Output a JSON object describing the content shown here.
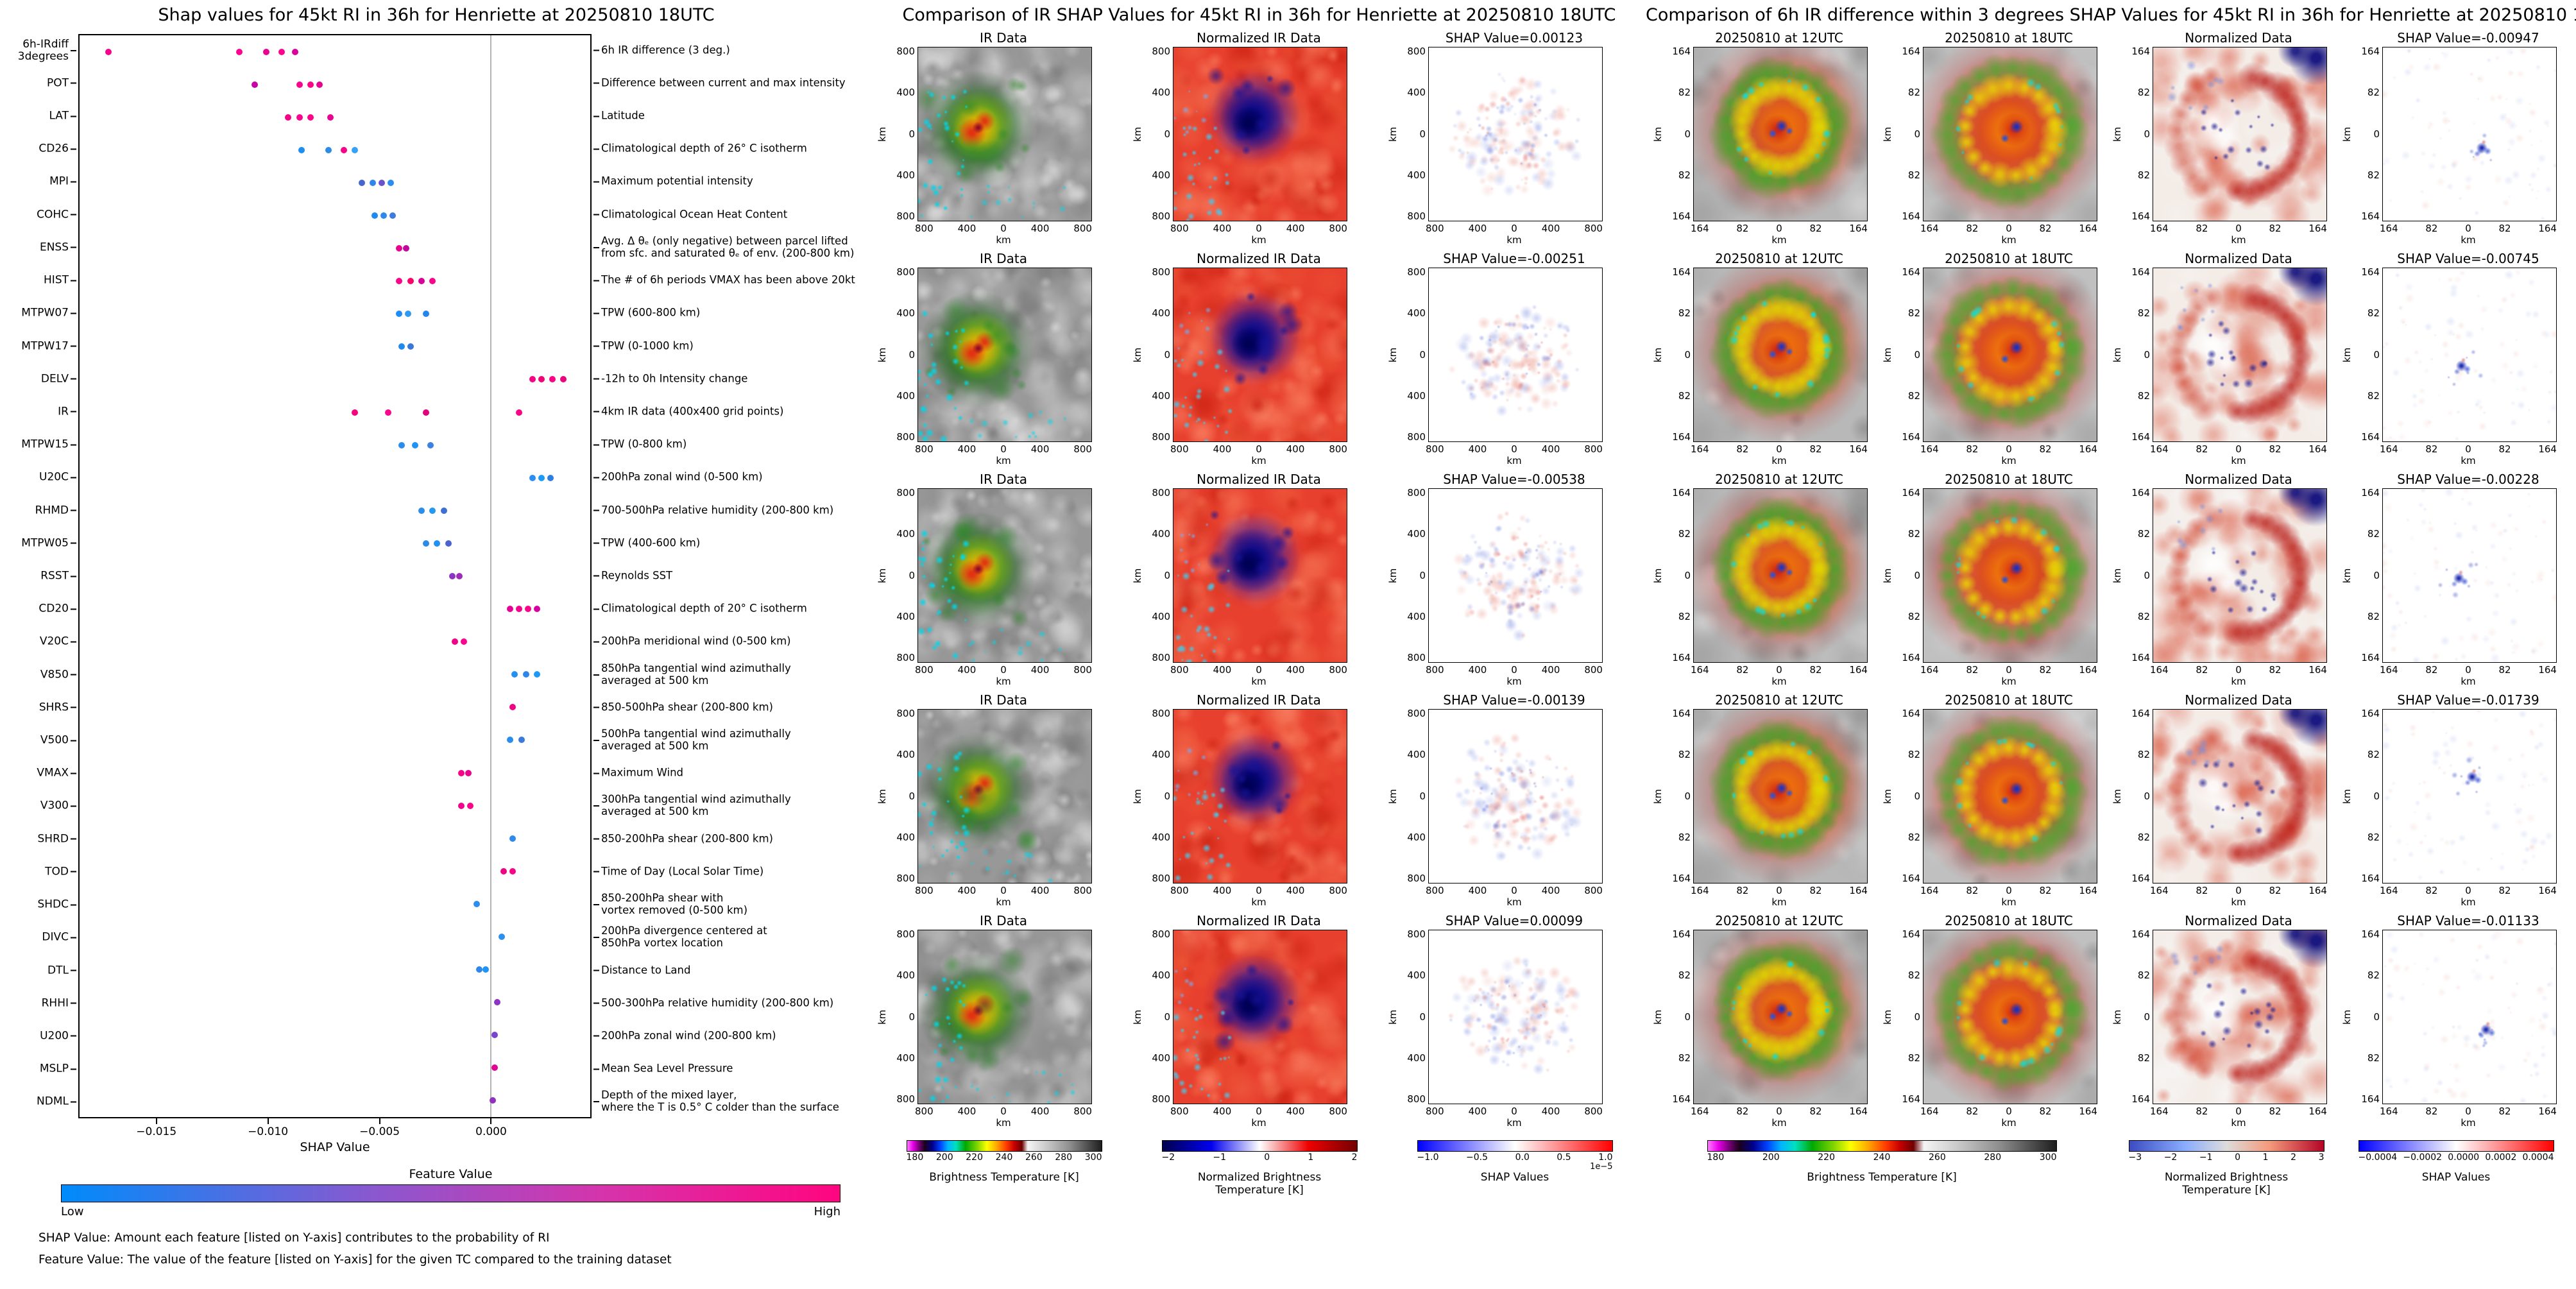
{
  "chart_data": [
    {
      "type": "scatter",
      "title": "Shap values for 45kt RI in 36h for Henriette at 20250810 18UTC",
      "xlabel": "SHAP Value",
      "xlim": [
        -0.0185,
        0.0045
      ],
      "x_ticks": [
        -0.015,
        -0.01,
        -0.005,
        0
      ],
      "legend_position": "none",
      "grid": false,
      "features": [
        {
          "name": "6h-IRdiff\n3degrees",
          "description": "6h IR difference (3 deg.)",
          "points": [
            [
              -0.0172,
              "#f5048b"
            ],
            [
              -0.0113,
              "#fb0590"
            ],
            [
              -0.0101,
              "#e8038f"
            ],
            [
              -0.0094,
              "#fb058a"
            ],
            [
              -0.0088,
              "#d6029a"
            ]
          ]
        },
        {
          "name": "POT",
          "description": "Difference between current and max intensity",
          "points": [
            [
              -0.0106,
              "#c504a8"
            ],
            [
              -0.0086,
              "#f70590"
            ],
            [
              -0.0081,
              "#fd0487"
            ],
            [
              -0.0077,
              "#e60392"
            ]
          ]
        },
        {
          "name": "LAT",
          "description": "Latitude",
          "points": [
            [
              -0.0091,
              "#f20484"
            ],
            [
              -0.0086,
              "#fa0490"
            ],
            [
              -0.0081,
              "#fc058a"
            ],
            [
              -0.0072,
              "#e80493"
            ]
          ]
        },
        {
          "name": "CD26",
          "description": "Climatological depth of 26° C isotherm",
          "points": [
            [
              -0.0085,
              "#1c8ef0"
            ],
            [
              -0.0073,
              "#2b8ce6"
            ],
            [
              -0.0066,
              "#f50589"
            ],
            [
              -0.0061,
              "#35a2f5"
            ]
          ]
        },
        {
          "name": "MPI",
          "description": "Maximum potential intensity",
          "points": [
            [
              -0.0058,
              "#4766cf"
            ],
            [
              -0.0053,
              "#2f86ea"
            ],
            [
              -0.0049,
              "#6a52c9"
            ],
            [
              -0.0045,
              "#2a8df0"
            ]
          ]
        },
        {
          "name": "COHC",
          "description": "Climatological Ocean Heat Content",
          "points": [
            [
              -0.0052,
              "#1f8bf2"
            ],
            [
              -0.0048,
              "#2d89ec"
            ],
            [
              -0.0044,
              "#3f7ade"
            ]
          ]
        },
        {
          "name": "ENSS",
          "description": "Avg. Δ θₑ (only negative) between parcel lifted\nfrom sfc. and saturated θₑ of env. (200-800 km)",
          "points": [
            [
              -0.0041,
              "#e8038f"
            ],
            [
              -0.0038,
              "#c2079e"
            ]
          ]
        },
        {
          "name": "HIST",
          "description": "The # of 6h periods VMAX has been above 20kt",
          "points": [
            [
              -0.0041,
              "#f7058b"
            ],
            [
              -0.0036,
              "#fb0468"
            ],
            [
              -0.0031,
              "#d6029a"
            ],
            [
              -0.0026,
              "#f9048e"
            ]
          ]
        },
        {
          "name": "MTPW07",
          "description": "TPW (600-800 km)",
          "points": [
            [
              -0.0041,
              "#1d8df3"
            ],
            [
              -0.0037,
              "#2e9bf0"
            ],
            [
              -0.0029,
              "#2486ea"
            ]
          ]
        },
        {
          "name": "MTPW17",
          "description": "TPW (0-1000 km)",
          "points": [
            [
              -0.004,
              "#2089ef"
            ],
            [
              -0.0036,
              "#3a77dd"
            ]
          ]
        },
        {
          "name": "DELV",
          "description": "-12h to 0h Intensity change",
          "points": [
            [
              0.0019,
              "#f50483"
            ],
            [
              0.0023,
              "#ef0576"
            ],
            [
              0.0028,
              "#f90487"
            ],
            [
              0.0033,
              "#e90480"
            ]
          ]
        },
        {
          "name": "IR",
          "description": "4km IR data (400x400 grid points)",
          "points": [
            [
              -0.0061,
              "#f2047e"
            ],
            [
              -0.0046,
              "#fb058c"
            ],
            [
              -0.0029,
              "#e0027a"
            ],
            [
              0.0013,
              "#f70584"
            ]
          ]
        },
        {
          "name": "MTPW15",
          "description": "TPW (0-800 km)",
          "points": [
            [
              -0.004,
              "#2b8deb"
            ],
            [
              -0.0034,
              "#1f94f4"
            ],
            [
              -0.0027,
              "#3b82e2"
            ]
          ]
        },
        {
          "name": "U20C",
          "description": "200hPa zonal wind (0-500 km)",
          "points": [
            [
              0.0019,
              "#2a8ff1"
            ],
            [
              0.0023,
              "#1e9bf7"
            ],
            [
              0.0027,
              "#2f7fe0"
            ]
          ]
        },
        {
          "name": "RHMD",
          "description": "700-500hPa relative humidity (200-800 km)",
          "points": [
            [
              -0.0031,
              "#2d8deb"
            ],
            [
              -0.0026,
              "#2299f3"
            ],
            [
              -0.0021,
              "#3f6fd6"
            ]
          ]
        },
        {
          "name": "MTPW05",
          "description": "TPW (400-600 km)",
          "points": [
            [
              -0.0029,
              "#2f8ae7"
            ],
            [
              -0.0024,
              "#2090f2"
            ],
            [
              -0.0019,
              "#4a63cf"
            ]
          ]
        },
        {
          "name": "RSST",
          "description": "Reynolds SST",
          "points": [
            [
              -0.0017,
              "#8a35c4"
            ],
            [
              -0.0014,
              "#a02bba"
            ]
          ]
        },
        {
          "name": "CD20",
          "description": "Climatological depth of 20° C isotherm",
          "points": [
            [
              0.0009,
              "#e50394"
            ],
            [
              0.0013,
              "#f2048e"
            ],
            [
              0.0017,
              "#fa058a"
            ],
            [
              0.0021,
              "#d703a0"
            ]
          ]
        },
        {
          "name": "V20C",
          "description": "200hPa meridional wind (0-500 km)",
          "points": [
            [
              -0.0016,
              "#ef0486"
            ],
            [
              -0.0012,
              "#f80590"
            ]
          ]
        },
        {
          "name": "V850",
          "description": "850hPa tangential wind azimuthally\naveraged at 500 km",
          "points": [
            [
              0.0011,
              "#2490f2"
            ],
            [
              0.0016,
              "#2d86e8"
            ],
            [
              0.0021,
              "#1d9af6"
            ]
          ]
        },
        {
          "name": "SHRS",
          "description": "850-500hPa shear (200-800 km)",
          "points": [
            [
              0.001,
              "#ee0485"
            ]
          ]
        },
        {
          "name": "V500",
          "description": "500hPa tangential wind azimuthally\naveraged at 500 km",
          "points": [
            [
              0.0009,
              "#2a8deb"
            ],
            [
              0.0014,
              "#3a7adc"
            ]
          ]
        },
        {
          "name": "VMAX",
          "description": "Maximum Wind",
          "points": [
            [
              -0.0013,
              "#f40486"
            ],
            [
              -0.001,
              "#e9038d"
            ]
          ]
        },
        {
          "name": "V300",
          "description": "300hPa tangential wind azimuthally\naveraged at 500 km",
          "points": [
            [
              -0.0013,
              "#ef058c"
            ],
            [
              -0.0009,
              "#f9048a"
            ]
          ]
        },
        {
          "name": "SHRD",
          "description": "850-200hPa shear (200-800 km)",
          "points": [
            [
              0.001,
              "#2f89e9"
            ]
          ]
        },
        {
          "name": "TOD",
          "description": "Time of Day (Local Solar Time)",
          "points": [
            [
              0.0006,
              "#ec0483"
            ],
            [
              0.001,
              "#f70588"
            ]
          ]
        },
        {
          "name": "SHDC",
          "description": "850-200hPa shear with\nvortex removed (0-500 km)",
          "points": [
            [
              -0.0006,
              "#2e8ced"
            ]
          ]
        },
        {
          "name": "DIVC",
          "description": "200hPa divergence centered at\n850hPa vortex location",
          "points": [
            [
              0.0005,
              "#2b90f0"
            ]
          ]
        },
        {
          "name": "DTL",
          "description": "Distance to Land",
          "points": [
            [
              -0.0005,
              "#2f87e8"
            ],
            [
              -0.0002,
              "#2293f3"
            ]
          ]
        },
        {
          "name": "RHHI",
          "description": "500-300hPa relative humidity (200-800 km)",
          "points": [
            [
              0.0003,
              "#8d36c1"
            ]
          ]
        },
        {
          "name": "U200",
          "description": "200hPa zonal wind (200-800 km)",
          "points": [
            [
              0.0002,
              "#7a44cc"
            ]
          ]
        },
        {
          "name": "MSLP",
          "description": "Mean Sea Level Pressure",
          "points": [
            [
              0.0002,
              "#e20394"
            ]
          ]
        },
        {
          "name": "NDML",
          "description": "Depth of the mixed layer,\nwhere the T is 0.5° C colder than the surface",
          "points": [
            [
              0.0001,
              "#9031bf"
            ]
          ]
        }
      ]
    },
    {
      "type": "heatmap",
      "title": "Comparison of IR SHAP Values for 45kt RI in 36h for Henriette at 20250810 18UTC",
      "columns": [
        "IR Data",
        "Normalized IR Data",
        "SHAP Value"
      ],
      "shap_values": [
        0.00123,
        -0.00251,
        -0.00538,
        -0.00139,
        0.00099
      ],
      "axis_range_km": [
        -800,
        800
      ]
    },
    {
      "type": "heatmap",
      "title": "Comparison of 6h IR difference within 3 degrees SHAP Values for 45kt RI in 36h for Henriette at 20250810 18UTC",
      "columns": [
        "20250810 at 12UTC",
        "20250810 at 18UTC",
        "Normalized Data",
        "SHAP Value"
      ],
      "shap_values": [
        -0.00947,
        -0.00745,
        -0.00228,
        -0.01739,
        -0.01133
      ],
      "axis_range_km": [
        -164,
        164
      ]
    }
  ],
  "left_panel": {
    "colorbar": {
      "title": "Feature Value",
      "low_label": "Low",
      "high_label": "High",
      "low_color": "#008bfb",
      "high_color": "#ff0580"
    },
    "footnote1": "SHAP Value: Amount each feature [listed on Y-axis] contributes to the probability of RI",
    "footnote2": "Feature Value: The value of the feature [listed on Y-axis] for the given TC compared to the training dataset"
  },
  "middle_panel": {
    "title": "Comparison of IR SHAP Values for 45kt RI in 36h for Henriette at 20250810 18UTC",
    "axis_unit": "km",
    "yticks": [
      "800",
      "400",
      "0",
      "400",
      "800"
    ],
    "xticks": [
      "800",
      "400",
      "0",
      "400",
      "800"
    ],
    "rows": [
      {
        "cells": [
          {
            "title": "IR Data",
            "type": "ir"
          },
          {
            "title": "Normalized IR Data",
            "type": "norm_ir"
          },
          {
            "title": "SHAP Value=0.00123",
            "type": "shap_ring"
          }
        ]
      },
      {
        "cells": [
          {
            "title": "IR Data",
            "type": "ir"
          },
          {
            "title": "Normalized IR Data",
            "type": "norm_ir"
          },
          {
            "title": "SHAP Value=-0.00251",
            "type": "shap_ring"
          }
        ]
      },
      {
        "cells": [
          {
            "title": "IR Data",
            "type": "ir"
          },
          {
            "title": "Normalized IR Data",
            "type": "norm_ir"
          },
          {
            "title": "SHAP Value=-0.00538",
            "type": "shap_ring"
          }
        ]
      },
      {
        "cells": [
          {
            "title": "IR Data",
            "type": "ir"
          },
          {
            "title": "Normalized IR Data",
            "type": "norm_ir"
          },
          {
            "title": "SHAP Value=-0.00139",
            "type": "shap_ring"
          }
        ]
      },
      {
        "cells": [
          {
            "title": "IR Data",
            "type": "ir"
          },
          {
            "title": "Normalized IR Data",
            "type": "norm_ir"
          },
          {
            "title": "SHAP Value=0.00099",
            "type": "shap_ring"
          }
        ]
      }
    ],
    "colorbars": [
      {
        "label": "Brightness Temperature [K]",
        "ticks": [
          "180",
          "200",
          "220",
          "240",
          "260",
          "280",
          "300"
        ],
        "gradient": "irbt"
      },
      {
        "label": "Normalized Brightness Temperature [K]",
        "ticks": [
          "−2",
          "−1",
          "0",
          "1",
          "2"
        ],
        "gradient": "seismic"
      },
      {
        "label": "SHAP Values",
        "ticks": [
          "−1.0",
          "−0.5",
          "0.0",
          "0.5",
          "1.0"
        ],
        "exponent": "1e−5",
        "gradient": "bwr"
      }
    ]
  },
  "right_panel": {
    "title": "Comparison of 6h IR difference within 3 degrees SHAP Values for 45kt RI in 36h for Henriette at 20250810 18UTC",
    "axis_unit": "km",
    "yticks": [
      "164",
      "82",
      "0",
      "82",
      "164"
    ],
    "xticks": [
      "164",
      "82",
      "0",
      "82",
      "164"
    ],
    "rows": [
      {
        "cells": [
          {
            "title": "20250810 at 12UTC",
            "type": "diff12"
          },
          {
            "title": "20250810 at 18UTC",
            "type": "diff18"
          },
          {
            "title": "Normalized Data",
            "type": "norm_diff"
          },
          {
            "title": "SHAP Value=-0.00947",
            "type": "shap_spot"
          }
        ]
      },
      {
        "cells": [
          {
            "title": "20250810 at 12UTC",
            "type": "diff12"
          },
          {
            "title": "20250810 at 18UTC",
            "type": "diff18"
          },
          {
            "title": "Normalized Data",
            "type": "norm_diff"
          },
          {
            "title": "SHAP Value=-0.00745",
            "type": "shap_spot"
          }
        ]
      },
      {
        "cells": [
          {
            "title": "20250810 at 12UTC",
            "type": "diff12"
          },
          {
            "title": "20250810 at 18UTC",
            "type": "diff18"
          },
          {
            "title": "Normalized Data",
            "type": "norm_diff"
          },
          {
            "title": "SHAP Value=-0.00228",
            "type": "shap_spot"
          }
        ]
      },
      {
        "cells": [
          {
            "title": "20250810 at 12UTC",
            "type": "diff12"
          },
          {
            "title": "20250810 at 18UTC",
            "type": "diff18"
          },
          {
            "title": "Normalized Data",
            "type": "norm_diff"
          },
          {
            "title": "SHAP Value=-0.01739",
            "type": "shap_spot"
          }
        ]
      },
      {
        "cells": [
          {
            "title": "20250810 at 12UTC",
            "type": "diff12"
          },
          {
            "title": "20250810 at 18UTC",
            "type": "diff18"
          },
          {
            "title": "Normalized Data",
            "type": "norm_diff"
          },
          {
            "title": "SHAP Value=-0.01133",
            "type": "shap_spot"
          }
        ]
      }
    ],
    "colorbars": [
      {
        "label": "Brightness Temperature [K]",
        "ticks": [
          "180",
          "200",
          "220",
          "240",
          "260",
          "280",
          "300"
        ],
        "gradient": "irbt",
        "span2": true
      },
      {
        "label": "Normalized Brightness Temperature [K]",
        "ticks": [
          "−3",
          "−2",
          "−1",
          "0",
          "1",
          "2",
          "3"
        ],
        "gradient": "coolwarm"
      },
      {
        "label": "SHAP Values",
        "ticks": [
          "−0.0004",
          "−0.0002",
          "0.0000",
          "0.0002",
          "0.0004"
        ],
        "gradient": "bwr"
      }
    ]
  }
}
